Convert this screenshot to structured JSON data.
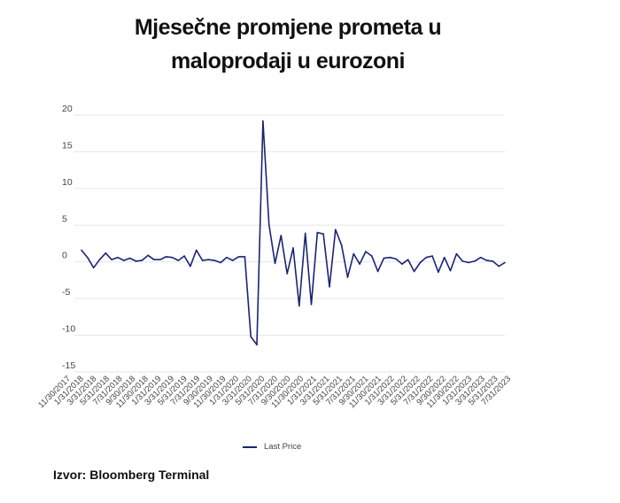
{
  "title_line1": "Mjesečne promjene prometa u",
  "title_line2": "maloprodaji u eurozoni",
  "legend_label": "Last Price",
  "source": "Izvor: Bloomberg Terminal",
  "colors": {
    "line": "#1a2473",
    "grid": "#e6e6e6",
    "text": "#444444"
  },
  "chart_data": {
    "type": "line",
    "title": "Mjesečne promjene prometa u maloprodaji u eurozoni",
    "xlabel": "",
    "ylabel": "",
    "ylim": [
      -15,
      20
    ],
    "yticks": [
      20,
      15,
      10,
      5,
      0,
      -5,
      -10,
      -15
    ],
    "grid": true,
    "legend_position": "bottom-center",
    "x_tick_labels": [
      "11/30/2017",
      "1/31/2018",
      "3/31/2018",
      "5/31/2018",
      "7/31/2018",
      "9/30/2018",
      "11/30/2018",
      "1/31/2019",
      "3/31/2019",
      "5/31/2019",
      "7/31/2019",
      "9/30/2019",
      "11/30/2019",
      "1/31/2020",
      "3/31/2020",
      "5/31/2020",
      "7/31/2020",
      "9/30/2020",
      "11/30/2020",
      "1/31/2021",
      "3/31/2021",
      "5/31/2021",
      "7/31/2021",
      "9/30/2021",
      "11/30/2021",
      "1/31/2022",
      "3/31/2022",
      "5/31/2022",
      "7/31/2022",
      "9/30/2022",
      "11/30/2022",
      "1/31/2023",
      "3/31/2023",
      "5/31/2023",
      "7/31/2023"
    ],
    "x_start": "11/30/2017",
    "x_end": "7/31/2023",
    "series": [
      {
        "name": "Last Price",
        "values": [
          1.6,
          0.6,
          -0.8,
          0.3,
          1.2,
          0.3,
          0.6,
          0.2,
          0.5,
          0.1,
          0.2,
          0.9,
          0.3,
          0.3,
          0.7,
          0.6,
          0.2,
          0.8,
          -0.6,
          1.6,
          0.2,
          0.3,
          0.2,
          -0.1,
          0.6,
          0.2,
          0.7,
          0.7,
          -10.2,
          -11.3,
          19.2,
          5.1,
          -0.2,
          3.6,
          -1.6,
          1.9,
          -6.0,
          3.9,
          -5.8,
          4.0,
          3.8,
          -3.4,
          4.4,
          2.3,
          -2.1,
          1.1,
          -0.3,
          1.4,
          0.8,
          -1.3,
          0.5,
          0.6,
          0.4,
          -0.3,
          0.3,
          -1.3,
          -0.1,
          0.6,
          0.8,
          -1.4,
          0.6,
          -1.2,
          1.1,
          0.1,
          -0.1,
          0.1,
          0.6,
          0.2,
          0.1,
          -0.6,
          -0.1
        ]
      }
    ]
  }
}
